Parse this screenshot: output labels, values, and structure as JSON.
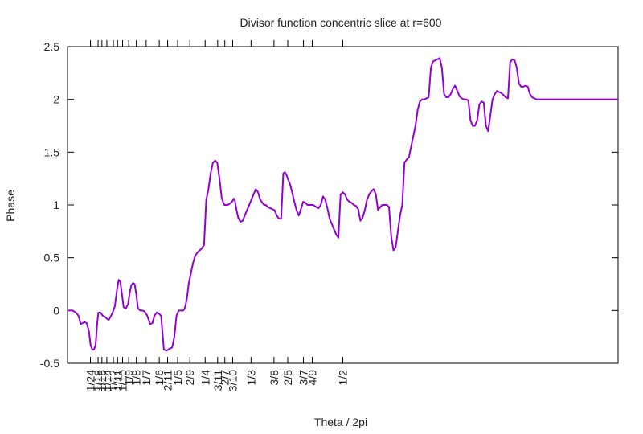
{
  "chart_data": {
    "type": "line",
    "title": "Divisor function concentric slice at r=600",
    "xlabel": "Theta / 2pi",
    "ylabel": "Phase",
    "xlim": [
      0,
      1
    ],
    "ylim": [
      -0.5,
      2.5
    ],
    "y_ticks": [
      "-0.5",
      "0",
      "0.5",
      "1",
      "1.5",
      "2",
      "2.5"
    ],
    "y_tick_values": [
      -0.5,
      0,
      0.5,
      1,
      1.5,
      2,
      2.5
    ],
    "x_ticks": [
      {
        "label": "1/24",
        "value": 0.04167
      },
      {
        "label": "1/18",
        "value": 0.05556
      },
      {
        "label": "1/16",
        "value": 0.0625
      },
      {
        "label": "1/14",
        "value": 0.07143
      },
      {
        "label": "1/12",
        "value": 0.08333
      },
      {
        "label": "1/11",
        "value": 0.09091
      },
      {
        "label": "1/10",
        "value": 0.1
      },
      {
        "label": "1/9",
        "value": 0.11111
      },
      {
        "label": "1/8",
        "value": 0.125
      },
      {
        "label": "1/7",
        "value": 0.14286
      },
      {
        "label": "1/6",
        "value": 0.16667
      },
      {
        "label": "2/11",
        "value": 0.18182
      },
      {
        "label": "1/5",
        "value": 0.2
      },
      {
        "label": "2/9",
        "value": 0.22222
      },
      {
        "label": "1/4",
        "value": 0.25
      },
      {
        "label": "3/11",
        "value": 0.27273
      },
      {
        "label": "2/7",
        "value": 0.28571
      },
      {
        "label": "3/10",
        "value": 0.3
      },
      {
        "label": "1/3",
        "value": 0.33333
      },
      {
        "label": "3/8",
        "value": 0.375
      },
      {
        "label": "2/5",
        "value": 0.4
      },
      {
        "label": "3/7",
        "value": 0.42857
      },
      {
        "label": "4/9",
        "value": 0.44444
      },
      {
        "label": "1/2",
        "value": 0.5
      }
    ],
    "top_ticks": [
      0.04167,
      0.05556,
      0.0625,
      0.07143,
      0.08333,
      0.09091,
      0.1,
      0.11111,
      0.125,
      0.14286,
      0.16667,
      0.18182,
      0.2,
      0.22222,
      0.25,
      0.27273,
      0.28571,
      0.3,
      0.33333,
      0.375,
      0.4,
      0.42857,
      0.44444,
      0.5
    ],
    "grid": false,
    "legend": "none",
    "series": [
      {
        "color": "#9400d3",
        "x": [
          0,
          0.009,
          0.015,
          0.02,
          0.024,
          0.027,
          0.031,
          0.035,
          0.039,
          0.042,
          0.045,
          0.048,
          0.051,
          0.054,
          0.056,
          0.06,
          0.064,
          0.068,
          0.072,
          0.075,
          0.078,
          0.082,
          0.086,
          0.09,
          0.093,
          0.096,
          0.099,
          0.102,
          0.106,
          0.11,
          0.113,
          0.116,
          0.119,
          0.122,
          0.125,
          0.128,
          0.132,
          0.136,
          0.14,
          0.144,
          0.147,
          0.15,
          0.154,
          0.158,
          0.162,
          0.166,
          0.17,
          0.175,
          0.18,
          0.183,
          0.186,
          0.19,
          0.194,
          0.198,
          0.202,
          0.206,
          0.21,
          0.212,
          0.214,
          0.217,
          0.22,
          0.224,
          0.228,
          0.232,
          0.236,
          0.24,
          0.244,
          0.248,
          0.252,
          0.256,
          0.26,
          0.264,
          0.268,
          0.272,
          0.276,
          0.28,
          0.283,
          0.285,
          0.288,
          0.291,
          0.294,
          0.297,
          0.3,
          0.302,
          0.304,
          0.307,
          0.31,
          0.314,
          0.318,
          0.322,
          0.326,
          0.33,
          0.334,
          0.338,
          0.342,
          0.346,
          0.35,
          0.354,
          0.357,
          0.36,
          0.364,
          0.368,
          0.372,
          0.376,
          0.38,
          0.384,
          0.388,
          0.392,
          0.395,
          0.398,
          0.4,
          0.404,
          0.408,
          0.412,
          0.416,
          0.42,
          0.424,
          0.428,
          0.432,
          0.436,
          0.44,
          0.443,
          0.446,
          0.449,
          0.452,
          0.456,
          0.46,
          0.464,
          0.468,
          0.472,
          0.476,
          0.48,
          0.484,
          0.488,
          0.492,
          0.496,
          0.5,
          0.504,
          0.508,
          0.512,
          0.516,
          0.52,
          0.524,
          0.528,
          0.532,
          0.536,
          0.54,
          0.544,
          0.548,
          0.552,
          0.556,
          0.56,
          0.564,
          0.568,
          0.572,
          0.576,
          0.58,
          0.584,
          0.588,
          0.592,
          0.596,
          0.6,
          0.604,
          0.608,
          0.612,
          0.616,
          0.62,
          0.624,
          0.628,
          0.632,
          0.636,
          0.64,
          0.644,
          0.648,
          0.652,
          0.656,
          0.66,
          0.664,
          0.668,
          0.672,
          0.676,
          0.68,
          0.684,
          0.688,
          0.692,
          0.696,
          0.7,
          0.704,
          0.708,
          0.712,
          0.716,
          0.72,
          0.724,
          0.728,
          0.732,
          0.736,
          0.74,
          0.744,
          0.748,
          0.752,
          0.756,
          0.76,
          0.764,
          0.768,
          0.772,
          0.776,
          0.78,
          0.784,
          0.788,
          0.792,
          0.796,
          0.8,
          0.804,
          0.808,
          0.812,
          0.816,
          0.82,
          0.824,
          0.828,
          0.832,
          0.836,
          0.84,
          0.844,
          0.848,
          0.852,
          0.856,
          0.86,
          0.864,
          0.868,
          0.872,
          0.876,
          0.88,
          0.884,
          0.888,
          0.892,
          0.896,
          0.9,
          0.904,
          0.908,
          0.912,
          0.916,
          0.92,
          0.924,
          0.928,
          0.932,
          0.936,
          0.94,
          0.944,
          0.948,
          0.952,
          0.956,
          0.96,
          0.964,
          0.968,
          0.972,
          0.976,
          0.98,
          0.984,
          0.988,
          0.992,
          0.996,
          1.0
        ],
        "y": [
          0,
          0,
          -0.02,
          -0.05,
          -0.13,
          -0.12,
          -0.11,
          -0.12,
          -0.2,
          -0.33,
          -0.37,
          -0.37,
          -0.33,
          -0.12,
          -0.02,
          -0.02,
          -0.05,
          -0.06,
          -0.08,
          -0.09,
          -0.06,
          -0.02,
          0.04,
          0.2,
          0.29,
          0.27,
          0.15,
          0.03,
          0.02,
          0.06,
          0.17,
          0.24,
          0.26,
          0.25,
          0.15,
          0.02,
          0.0,
          0.0,
          -0.01,
          -0.04,
          -0.08,
          -0.13,
          -0.12,
          -0.05,
          -0.02,
          -0.03,
          -0.05,
          -0.37,
          -0.38,
          -0.37,
          -0.36,
          -0.35,
          -0.25,
          -0.05,
          0.0,
          0.0,
          0.0,
          0.01,
          0.04,
          0.12,
          0.25,
          0.35,
          0.45,
          0.52,
          0.55,
          0.57,
          0.59,
          0.62,
          1.05,
          1.15,
          1.3,
          1.4,
          1.42,
          1.4,
          1.25,
          1.07,
          1.02,
          1.0,
          1.0,
          1.0,
          1.01,
          1.02,
          1.04,
          1.06,
          1.04,
          0.95,
          0.88,
          0.84,
          0.85,
          0.9,
          0.95,
          1.0,
          1.05,
          1.1,
          1.15,
          1.12,
          1.05,
          1.02,
          1.0,
          1.0,
          0.98,
          0.97,
          0.96,
          0.95,
          0.9,
          0.87,
          0.87,
          1.3,
          1.31,
          1.28,
          1.25,
          1.2,
          1.12,
          1.03,
          0.95,
          0.9,
          0.96,
          1.03,
          1.02,
          1.0,
          1.0,
          1.0,
          1.0,
          0.99,
          0.98,
          0.97,
          1.0,
          1.08,
          1.05,
          0.97,
          0.87,
          0.82,
          0.77,
          0.72,
          0.69,
          1.1,
          1.12,
          1.1,
          1.05,
          1.03,
          1.02,
          1.0,
          0.99,
          0.96,
          0.85,
          0.88,
          0.95,
          1.05,
          1.1,
          1.13,
          1.15,
          1.1,
          0.95,
          0.98,
          1.0,
          1.0,
          1.0,
          0.98,
          0.7,
          0.57,
          0.6,
          0.75,
          0.9,
          1.0,
          1.4,
          1.43,
          1.45,
          1.55,
          1.65,
          1.75,
          1.9,
          1.98,
          2.0,
          2.0,
          2.01,
          2.02,
          2.3,
          2.36,
          2.37,
          2.38,
          2.39,
          2.3,
          2.05,
          2.02,
          2.02,
          2.05,
          2.1,
          2.13,
          2.08,
          2.03,
          2.01,
          2.0,
          2.0,
          1.99,
          1.8,
          1.75,
          1.75,
          1.8,
          1.95,
          1.98,
          1.97,
          1.75,
          1.7,
          1.85,
          2.0,
          2.05,
          2.08,
          2.07,
          2.06,
          2.04,
          2.02,
          2.01,
          2.35,
          2.38,
          2.37,
          2.3,
          2.15,
          2.12,
          2.12,
          2.13,
          2.12,
          2.05,
          2.02,
          2.01,
          2.0,
          2.0,
          2.0,
          2.0,
          2.0,
          2.0,
          2.0,
          2.0,
          2.0,
          2.0,
          2.0,
          2.0,
          2.0,
          2.0,
          2.0,
          2.0,
          2.0,
          2.0,
          2.0,
          2.0,
          2.0,
          2.0,
          2.0,
          2.0,
          2.0,
          2.0,
          2.0,
          2.0,
          2.0,
          2.0,
          2.0,
          2.0,
          2.0,
          2.0,
          2.0,
          2.0,
          2.0,
          2.0
        ]
      }
    ]
  }
}
